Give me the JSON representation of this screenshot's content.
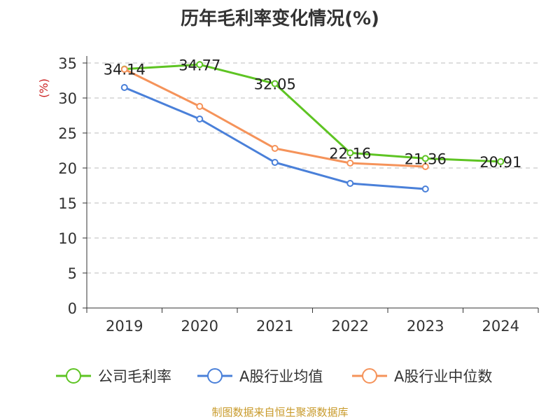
{
  "chart_data": {
    "type": "line",
    "title": "历年毛利率变化情况(%)",
    "ylabel": "(%)",
    "ylim": [
      0,
      35
    ],
    "yticks": [
      0,
      5,
      10,
      15,
      20,
      25,
      30,
      35
    ],
    "categories": [
      "2019",
      "2020",
      "2021",
      "2022",
      "2023",
      "2024"
    ],
    "grid": true,
    "legend_position": "bottom",
    "series": [
      {
        "name": "公司毛利率",
        "color": "#5ec423",
        "values": [
          34.14,
          34.77,
          32.05,
          22.16,
          21.36,
          20.91
        ],
        "labels": [
          "34.14",
          "34.77",
          "32.05",
          "22.16",
          "21.36",
          "20.91"
        ]
      },
      {
        "name": "A股行业均值",
        "color": "#4a80d9",
        "values": [
          31.5,
          27.0,
          20.8,
          17.8,
          17.0,
          null
        ]
      },
      {
        "name": "A股行业中位数",
        "color": "#f5935a",
        "values": [
          34.1,
          28.8,
          22.8,
          20.7,
          20.2,
          null
        ]
      }
    ]
  },
  "source_note": "制图数据来自恒生聚源数据库"
}
